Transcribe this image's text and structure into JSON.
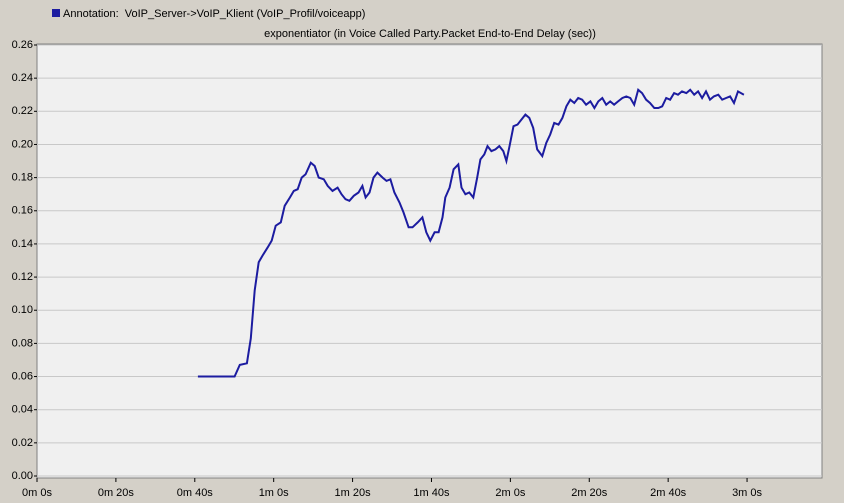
{
  "chart_data": {
    "type": "line",
    "title": "exponentiator (in Voice Called Party.Packet End-to-End Delay (sec))",
    "x": [
      40.8,
      50.1,
      51.4,
      53.2,
      54.2,
      55.2,
      56.2,
      57.2,
      58.5,
      59.5,
      60.5,
      61.8,
      62.8,
      64.1,
      65.1,
      66.1,
      67.1,
      68.1,
      69.4,
      70.4,
      71.4,
      72.7,
      73.7,
      74.9,
      76.2,
      77.2,
      78.2,
      79.2,
      80.3,
      81.5,
      82.5,
      83.3,
      84.3,
      85.3,
      86.3,
      87.6,
      88.6,
      89.6,
      90.6,
      91.9,
      92.9,
      94.2,
      95.2,
      96.5,
      97.7,
      98.7,
      99.7,
      100.8,
      101.8,
      102.8,
      103.5,
      104.6,
      105.6,
      106.8,
      107.6,
      108.6,
      109.6,
      110.6,
      111.6,
      112.4,
      113.4,
      114.2,
      115.2,
      116.2,
      117.2,
      118.2,
      119.0,
      119.7,
      120.8,
      121.8,
      122.8,
      123.8,
      124.8,
      125.8,
      126.8,
      128.1,
      129.1,
      130.1,
      131.1,
      132.2,
      133.2,
      134.2,
      135.2,
      136.2,
      137.2,
      138.2,
      139.2,
      140.3,
      141.3,
      142.3,
      143.3,
      144.3,
      145.3,
      146.3,
      147.3,
      148.4,
      149.4,
      150.4,
      151.4,
      152.4,
      153.4,
      154.4,
      155.4,
      156.5,
      157.5,
      158.5,
      159.5,
      160.5,
      161.5,
      162.5,
      163.5,
      164.6,
      165.6,
      166.6,
      167.6,
      168.6,
      169.6,
      170.6,
      171.6,
      172.7,
      173.7,
      174.7,
      175.7,
      176.7,
      177.7,
      179.2
    ],
    "series": [
      {
        "name": "Annotation:  VoIP_Server->VoIP_Klient (VoIP_Profil/voiceapp)",
        "color": "#1c1ca0",
        "values": [
          0.06,
          0.06,
          0.067,
          0.068,
          0.083,
          0.112,
          0.129,
          0.133,
          0.138,
          0.142,
          0.151,
          0.153,
          0.163,
          0.168,
          0.172,
          0.173,
          0.18,
          0.182,
          0.189,
          0.187,
          0.18,
          0.179,
          0.175,
          0.172,
          0.174,
          0.17,
          0.167,
          0.166,
          0.169,
          0.171,
          0.175,
          0.168,
          0.171,
          0.18,
          0.183,
          0.18,
          0.178,
          0.179,
          0.171,
          0.165,
          0.159,
          0.15,
          0.15,
          0.153,
          0.156,
          0.147,
          0.142,
          0.147,
          0.147,
          0.156,
          0.168,
          0.174,
          0.185,
          0.188,
          0.174,
          0.17,
          0.171,
          0.168,
          0.18,
          0.191,
          0.194,
          0.199,
          0.196,
          0.197,
          0.199,
          0.196,
          0.19,
          0.198,
          0.211,
          0.212,
          0.215,
          0.218,
          0.216,
          0.21,
          0.197,
          0.193,
          0.201,
          0.206,
          0.213,
          0.212,
          0.216,
          0.223,
          0.227,
          0.225,
          0.228,
          0.227,
          0.224,
          0.226,
          0.222,
          0.226,
          0.228,
          0.224,
          0.226,
          0.224,
          0.226,
          0.228,
          0.229,
          0.228,
          0.224,
          0.233,
          0.231,
          0.227,
          0.225,
          0.222,
          0.222,
          0.223,
          0.228,
          0.227,
          0.231,
          0.23,
          0.232,
          0.231,
          0.233,
          0.23,
          0.232,
          0.228,
          0.232,
          0.227,
          0.229,
          0.23,
          0.227,
          0.228,
          0.229,
          0.225,
          0.232,
          0.23
        ]
      }
    ],
    "xlim": [
      0,
      199
    ],
    "xticks": [
      {
        "value": 0,
        "label": "0m 0s"
      },
      {
        "value": 20,
        "label": "0m 20s"
      },
      {
        "value": 40,
        "label": "0m 40s"
      },
      {
        "value": 60,
        "label": "1m 0s"
      },
      {
        "value": 80,
        "label": "1m 20s"
      },
      {
        "value": 100,
        "label": "1m 40s"
      },
      {
        "value": 120,
        "label": "2m 0s"
      },
      {
        "value": 140,
        "label": "2m 20s"
      },
      {
        "value": 160,
        "label": "2m 40s"
      },
      {
        "value": 180,
        "label": "3m 0s"
      }
    ],
    "ylim": [
      0,
      0.26
    ],
    "yticks": [
      {
        "value": 0,
        "label": "0.00"
      },
      {
        "value": 0.02,
        "label": "0.02"
      },
      {
        "value": 0.04,
        "label": "0.04"
      },
      {
        "value": 0.06,
        "label": "0.06"
      },
      {
        "value": 0.08,
        "label": "0.08"
      },
      {
        "value": 0.1,
        "label": "0.10"
      },
      {
        "value": 0.12,
        "label": "0.12"
      },
      {
        "value": 0.14,
        "label": "0.14"
      },
      {
        "value": 0.16,
        "label": "0.16"
      },
      {
        "value": 0.18,
        "label": "0.18"
      },
      {
        "value": 0.2,
        "label": "0.20"
      },
      {
        "value": 0.22,
        "label": "0.22"
      },
      {
        "value": 0.24,
        "label": "0.24"
      },
      {
        "value": 0.26,
        "label": "0.26"
      }
    ],
    "grid": true
  }
}
